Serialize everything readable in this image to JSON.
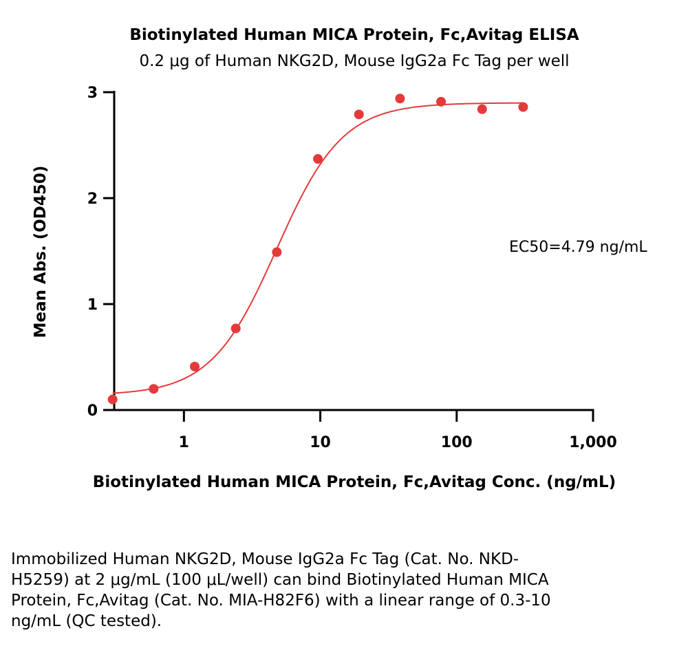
{
  "chart_data": {
    "type": "scatter",
    "title": "Biotinylated Human MICA Protein, Fc,Avitag ELISA",
    "subtitle": "0.2 μg of Human NKG2D, Mouse IgG2a Fc Tag per well",
    "xlabel": "Biotinylated Human MICA Protein, Fc,Avitag Conc. (ng/mL)",
    "ylabel": "Mean Abs. (OD450)",
    "x_scale": "log",
    "xlim": [
      0.25,
      1000
    ],
    "ylim": [
      0,
      3
    ],
    "x_ticks": [
      1,
      10,
      100,
      1000
    ],
    "x_tick_labels": [
      "1",
      "10",
      "100",
      "1,000"
    ],
    "y_ticks": [
      0,
      1,
      2,
      3
    ],
    "y_tick_labels": [
      "0",
      "1",
      "2",
      "3"
    ],
    "grid": false,
    "series": [
      {
        "x": [
          0.3,
          0.6,
          1.2,
          2.4,
          4.8,
          9.6,
          19.2,
          38.4,
          76.8,
          153.6,
          307.2
        ],
        "y": [
          0.1,
          0.2,
          0.41,
          0.77,
          1.49,
          2.37,
          2.79,
          2.94,
          2.91,
          2.84,
          2.86
        ],
        "color": "#e5393b"
      }
    ],
    "fit": {
      "type": "4PL",
      "bottom": 0.14,
      "top": 2.9,
      "ec50": 4.79,
      "hill": 1.8,
      "color": "#e5393b"
    },
    "annotations": [
      "EC50=4.79 ng/mL"
    ]
  },
  "caption": "Immobilized Human NKG2D, Mouse IgG2a Fc Tag (Cat. No. NKD-H5259) at 2 μg/mL (100 μL/well) can bind Biotinylated Human MICA Protein, Fc,Avitag (Cat. No. MIA-H82F6) with a linear range of 0.3-10 ng/mL (QC tested)."
}
